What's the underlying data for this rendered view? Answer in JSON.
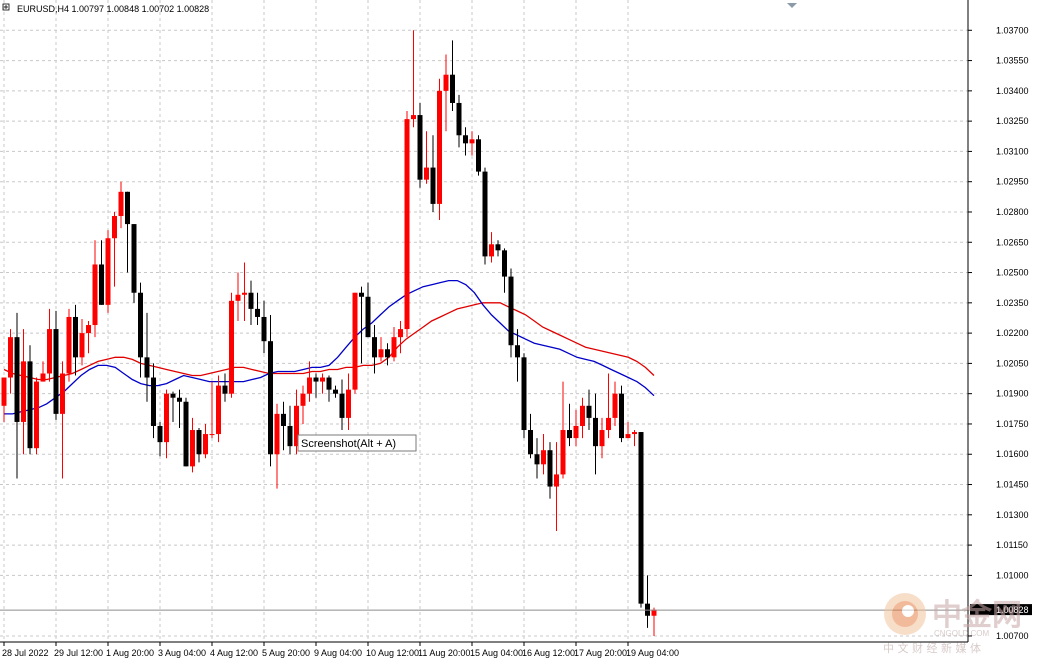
{
  "header": {
    "symbol_line": "EURUSD,H4  1.00797 1.00848 1.00702 1.00828"
  },
  "tooltip": {
    "text": "Screenshot(Alt + A)"
  },
  "current_price": {
    "label": "1.00828",
    "value": 1.00828
  },
  "watermark": {
    "brand": "中金网",
    "site": "CNGOLD.COM",
    "tagline": "中 文 财 经 新 媒 体",
    "brand_color": "#c8a6a6"
  },
  "colors": {
    "bull_candle": "#ff0000",
    "bear_candle": "#000000",
    "ma_red": "#e00000",
    "ma_blue": "#0000c8",
    "grid": "#c8c8c8"
  },
  "chart_data": {
    "type": "candlestick",
    "title": "EURUSD,H4",
    "ylim": [
      1.0067,
      1.0385
    ],
    "y_ticks": [
      "1.03700",
      "1.03550",
      "1.03400",
      "1.03250",
      "1.03100",
      "1.02950",
      "1.02800",
      "1.02650",
      "1.02500",
      "1.02350",
      "1.02200",
      "1.02050",
      "1.01900",
      "1.01750",
      "1.01600",
      "1.01450",
      "1.01300",
      "1.01150",
      "1.01000",
      "1.00700"
    ],
    "x_tick_labels": [
      "28 Jul 2022",
      "29 Jul 12:00",
      "1 Aug 20:00",
      "3 Aug 04:00",
      "4 Aug 12:00",
      "5 Aug 20:00",
      "9 Aug 04:00",
      "10 Aug 12:00",
      "11 Aug 20:00",
      "15 Aug 04:00",
      "16 Aug 12:00",
      "17 Aug 20:00",
      "19 Aug 04:00"
    ],
    "x_tick_bar_index": [
      0,
      8,
      16,
      24,
      32,
      40,
      48,
      56,
      64,
      72,
      80,
      88,
      96
    ],
    "grid": true,
    "candles": [
      {
        "o": 1.0184,
        "h": 1.0198,
        "l": 1.0176,
        "c": 1.0198
      },
      {
        "o": 1.0198,
        "h": 1.0222,
        "l": 1.019,
        "c": 1.0218
      },
      {
        "o": 1.0218,
        "h": 1.023,
        "l": 1.0148,
        "c": 1.0176
      },
      {
        "o": 1.0176,
        "h": 1.0222,
        "l": 1.016,
        "c": 1.0206
      },
      {
        "o": 1.0206,
        "h": 1.0214,
        "l": 1.016,
        "c": 1.0163
      },
      {
        "o": 1.0163,
        "h": 1.0198,
        "l": 1.016,
        "c": 1.0196
      },
      {
        "o": 1.0196,
        "h": 1.0206,
        "l": 1.0196,
        "c": 1.02
      },
      {
        "o": 1.02,
        "h": 1.0232,
        "l": 1.0196,
        "c": 1.0222
      },
      {
        "o": 1.0222,
        "h": 1.0231,
        "l": 1.0177,
        "c": 1.018
      },
      {
        "o": 1.018,
        "h": 1.0206,
        "l": 1.0148,
        "c": 1.02
      },
      {
        "o": 1.02,
        "h": 1.0232,
        "l": 1.0196,
        "c": 1.0228
      },
      {
        "o": 1.0228,
        "h": 1.0234,
        "l": 1.0199,
        "c": 1.0208
      },
      {
        "o": 1.0208,
        "h": 1.0227,
        "l": 1.0204,
        "c": 1.022
      },
      {
        "o": 1.022,
        "h": 1.0226,
        "l": 1.021,
        "c": 1.0224
      },
      {
        "o": 1.0224,
        "h": 1.0266,
        "l": 1.0218,
        "c": 1.0254
      },
      {
        "o": 1.0254,
        "h": 1.0266,
        "l": 1.0234,
        "c": 1.0234
      },
      {
        "o": 1.0234,
        "h": 1.0271,
        "l": 1.023,
        "c": 1.0267
      },
      {
        "o": 1.0267,
        "h": 1.028,
        "l": 1.0243,
        "c": 1.0278
      },
      {
        "o": 1.0278,
        "h": 1.0295,
        "l": 1.0272,
        "c": 1.029
      },
      {
        "o": 1.029,
        "h": 1.029,
        "l": 1.025,
        "c": 1.0274
      },
      {
        "o": 1.0274,
        "h": 1.0274,
        "l": 1.0235,
        "c": 1.024
      },
      {
        "o": 1.024,
        "h": 1.0245,
        "l": 1.0198,
        "c": 1.0208
      },
      {
        "o": 1.0208,
        "h": 1.023,
        "l": 1.0186,
        "c": 1.0198
      },
      {
        "o": 1.0198,
        "h": 1.0205,
        "l": 1.0168,
        "c": 1.0174
      },
      {
        "o": 1.0174,
        "h": 1.0176,
        "l": 1.0159,
        "c": 1.0166
      },
      {
        "o": 1.0166,
        "h": 1.0192,
        "l": 1.0158,
        "c": 1.019
      },
      {
        "o": 1.019,
        "h": 1.0191,
        "l": 1.0176,
        "c": 1.0188
      },
      {
        "o": 1.0188,
        "h": 1.0192,
        "l": 1.0173,
        "c": 1.0186
      },
      {
        "o": 1.0186,
        "h": 1.0188,
        "l": 1.0154,
        "c": 1.0154
      },
      {
        "o": 1.0154,
        "h": 1.0178,
        "l": 1.0151,
        "c": 1.0172
      },
      {
        "o": 1.0172,
        "h": 1.0173,
        "l": 1.0156,
        "c": 1.016
      },
      {
        "o": 1.016,
        "h": 1.0175,
        "l": 1.0158,
        "c": 1.017
      },
      {
        "o": 1.017,
        "h": 1.0196,
        "l": 1.0168,
        "c": 1.017
      },
      {
        "o": 1.017,
        "h": 1.0199,
        "l": 1.0166,
        "c": 1.0194
      },
      {
        "o": 1.0194,
        "h": 1.02,
        "l": 1.0186,
        "c": 1.019
      },
      {
        "o": 1.019,
        "h": 1.024,
        "l": 1.0188,
        "c": 1.0236
      },
      {
        "o": 1.0236,
        "h": 1.025,
        "l": 1.0226,
        "c": 1.0239
      },
      {
        "o": 1.0239,
        "h": 1.0255,
        "l": 1.0226,
        "c": 1.024
      },
      {
        "o": 1.024,
        "h": 1.0246,
        "l": 1.0224,
        "c": 1.0232
      },
      {
        "o": 1.0232,
        "h": 1.024,
        "l": 1.0224,
        "c": 1.0228
      },
      {
        "o": 1.0228,
        "h": 1.0236,
        "l": 1.021,
        "c": 1.0216
      },
      {
        "o": 1.0216,
        "h": 1.0229,
        "l": 1.0154,
        "c": 1.016
      },
      {
        "o": 1.016,
        "h": 1.0185,
        "l": 1.0143,
        "c": 1.018
      },
      {
        "o": 1.018,
        "h": 1.0186,
        "l": 1.0162,
        "c": 1.0174
      },
      {
        "o": 1.0174,
        "h": 1.0184,
        "l": 1.016,
        "c": 1.0164
      },
      {
        "o": 1.0164,
        "h": 1.0192,
        "l": 1.016,
        "c": 1.0184
      },
      {
        "o": 1.0184,
        "h": 1.0194,
        "l": 1.0175,
        "c": 1.019
      },
      {
        "o": 1.019,
        "h": 1.0206,
        "l": 1.0186,
        "c": 1.0198
      },
      {
        "o": 1.0198,
        "h": 1.02,
        "l": 1.0188,
        "c": 1.0196
      },
      {
        "o": 1.0196,
        "h": 1.02,
        "l": 1.019,
        "c": 1.0198
      },
      {
        "o": 1.0198,
        "h": 1.0199,
        "l": 1.0186,
        "c": 1.0192
      },
      {
        "o": 1.0192,
        "h": 1.0194,
        "l": 1.0188,
        "c": 1.019
      },
      {
        "o": 1.019,
        "h": 1.0197,
        "l": 1.0172,
        "c": 1.0178
      },
      {
        "o": 1.0178,
        "h": 1.02,
        "l": 1.0172,
        "c": 1.0192
      },
      {
        "o": 1.0192,
        "h": 1.024,
        "l": 1.019,
        "c": 1.024
      },
      {
        "o": 1.024,
        "h": 1.0243,
        "l": 1.0205,
        "c": 1.0238
      },
      {
        "o": 1.0238,
        "h": 1.0245,
        "l": 1.0218,
        "c": 1.0218
      },
      {
        "o": 1.0218,
        "h": 1.0224,
        "l": 1.02,
        "c": 1.0208
      },
      {
        "o": 1.0208,
        "h": 1.0218,
        "l": 1.0206,
        "c": 1.0212
      },
      {
        "o": 1.0212,
        "h": 1.0215,
        "l": 1.0204,
        "c": 1.0208
      },
      {
        "o": 1.0208,
        "h": 1.0223,
        "l": 1.0206,
        "c": 1.0218
      },
      {
        "o": 1.0218,
        "h": 1.0226,
        "l": 1.021,
        "c": 1.0222
      },
      {
        "o": 1.0222,
        "h": 1.033,
        "l": 1.0218,
        "c": 1.0326
      },
      {
        "o": 1.0326,
        "h": 1.037,
        "l": 1.0322,
        "c": 1.0328
      },
      {
        "o": 1.0328,
        "h": 1.0334,
        "l": 1.0292,
        "c": 1.0296
      },
      {
        "o": 1.0296,
        "h": 1.032,
        "l": 1.0294,
        "c": 1.0302
      },
      {
        "o": 1.0302,
        "h": 1.0318,
        "l": 1.028,
        "c": 1.0284
      },
      {
        "o": 1.0284,
        "h": 1.0346,
        "l": 1.0276,
        "c": 1.034
      },
      {
        "o": 1.034,
        "h": 1.0358,
        "l": 1.032,
        "c": 1.0348
      },
      {
        "o": 1.0348,
        "h": 1.0365,
        "l": 1.033,
        "c": 1.0334
      },
      {
        "o": 1.0334,
        "h": 1.0338,
        "l": 1.0312,
        "c": 1.0318
      },
      {
        "o": 1.0318,
        "h": 1.0322,
        "l": 1.0308,
        "c": 1.0314
      },
      {
        "o": 1.0314,
        "h": 1.032,
        "l": 1.0308,
        "c": 1.0316
      },
      {
        "o": 1.0316,
        "h": 1.0318,
        "l": 1.0298,
        "c": 1.03
      },
      {
        "o": 1.03,
        "h": 1.0302,
        "l": 1.0254,
        "c": 1.0258
      }
    ],
    "candles_tail": [
      {
        "o": 1.0258,
        "h": 1.027,
        "l": 1.0255,
        "c": 1.0264
      },
      {
        "o": 1.0264,
        "h": 1.0266,
        "l": 1.0258,
        "c": 1.0261
      },
      {
        "o": 1.0261,
        "h": 1.0262,
        "l": 1.024,
        "c": 1.0248
      },
      {
        "o": 1.0248,
        "h": 1.0252,
        "l": 1.0208,
        "c": 1.0214
      },
      {
        "o": 1.0214,
        "h": 1.0222,
        "l": 1.0196,
        "c": 1.0208
      },
      {
        "o": 1.0208,
        "h": 1.021,
        "l": 1.0168,
        "c": 1.0172
      },
      {
        "o": 1.0172,
        "h": 1.018,
        "l": 1.0158,
        "c": 1.016
      },
      {
        "o": 1.016,
        "h": 1.0168,
        "l": 1.0148,
        "c": 1.0155
      },
      {
        "o": 1.0155,
        "h": 1.017,
        "l": 1.015,
        "c": 1.0162
      },
      {
        "o": 1.0162,
        "h": 1.0166,
        "l": 1.0138,
        "c": 1.0144
      },
      {
        "o": 1.0144,
        "h": 1.0166,
        "l": 1.0122,
        "c": 1.015
      },
      {
        "o": 1.015,
        "h": 1.0196,
        "l": 1.0148,
        "c": 1.0172
      },
      {
        "o": 1.0172,
        "h": 1.0185,
        "l": 1.0164,
        "c": 1.0168
      },
      {
        "o": 1.0168,
        "h": 1.0182,
        "l": 1.0164,
        "c": 1.0174
      },
      {
        "o": 1.0174,
        "h": 1.0188,
        "l": 1.0168,
        "c": 1.0184
      },
      {
        "o": 1.0184,
        "h": 1.0192,
        "l": 1.0172,
        "c": 1.0178
      },
      {
        "o": 1.0178,
        "h": 1.019,
        "l": 1.015,
        "c": 1.0164
      },
      {
        "o": 1.0164,
        "h": 1.0178,
        "l": 1.0158,
        "c": 1.0172
      },
      {
        "o": 1.0172,
        "h": 1.02,
        "l": 1.0168,
        "c": 1.0178
      },
      {
        "o": 1.0178,
        "h": 1.0196,
        "l": 1.0174,
        "c": 1.019
      },
      {
        "o": 1.019,
        "h": 1.0194,
        "l": 1.0166,
        "c": 1.0168
      },
      {
        "o": 1.0168,
        "h": 1.0176,
        "l": 1.0168,
        "c": 1.017
      },
      {
        "o": 1.017,
        "h": 1.0172,
        "l": 1.0164,
        "c": 1.0171
      },
      {
        "o": 1.0171,
        "h": 1.0171,
        "l": 1.0084,
        "c": 1.0086
      },
      {
        "o": 1.0086,
        "h": 1.01,
        "l": 1.0074,
        "c": 1.008
      },
      {
        "o": 1.008,
        "h": 1.0084,
        "l": 1.007,
        "c": 1.0083
      }
    ],
    "ma_red": [
      1.0202,
      1.02,
      1.0199,
      1.0198,
      1.0197,
      1.0197,
      1.0198,
      1.0199,
      1.02,
      1.0202,
      1.0204,
      1.0206,
      1.0207,
      1.0208,
      1.0208,
      1.0207,
      1.0205,
      1.0204,
      1.0203,
      1.0202,
      1.0201,
      1.02,
      1.0199,
      1.0199,
      1.02,
      1.0201,
      1.0202,
      1.0203,
      1.0203,
      1.0202,
      1.0201,
      1.02,
      1.02,
      1.02,
      1.02,
      1.02,
      1.0201,
      1.0201,
      1.0202,
      1.0202,
      1.0203,
      1.0203,
      1.0204,
      1.0204,
      1.0205,
      1.0208,
      1.0213,
      1.0217,
      1.022,
      1.0223,
      1.0226,
      1.0228,
      1.023,
      1.0232,
      1.0233,
      1.0234,
      1.0235,
      1.0235,
      1.0235,
      1.0233,
      1.0231,
      1.0229,
      1.0226,
      1.0223,
      1.0221,
      1.0219,
      1.0217,
      1.0215,
      1.0213,
      1.0212,
      1.0211,
      1.021,
      1.0209,
      1.0208,
      1.0206,
      1.0203,
      1.0199
    ],
    "ma_blue": [
      1.018,
      1.018,
      1.0181,
      1.0182,
      1.0183,
      1.0185,
      1.0188,
      1.0191,
      1.0195,
      1.0199,
      1.0202,
      1.0204,
      1.0204,
      1.0203,
      1.02,
      1.0197,
      1.0195,
      1.0194,
      1.0194,
      1.0195,
      1.0197,
      1.0199,
      1.0198,
      1.0197,
      1.0196,
      1.0196,
      1.0196,
      1.0196,
      1.0196,
      1.0197,
      1.0198,
      1.02,
      1.0201,
      1.0201,
      1.0201,
      1.0202,
      1.0203,
      1.0203,
      1.0204,
      1.0208,
      1.0213,
      1.0218,
      1.0222,
      1.0225,
      1.0229,
      1.0233,
      1.0236,
      1.0239,
      1.0241,
      1.0243,
      1.0244,
      1.0245,
      1.0246,
      1.0246,
      1.0244,
      1.024,
      1.0234,
      1.0229,
      1.0225,
      1.0221,
      1.0219,
      1.0217,
      1.0215,
      1.0214,
      1.0213,
      1.0212,
      1.021,
      1.0208,
      1.0207,
      1.0206,
      1.0204,
      1.0202,
      1.02,
      1.0198,
      1.0196,
      1.0193,
      1.0189
    ]
  }
}
